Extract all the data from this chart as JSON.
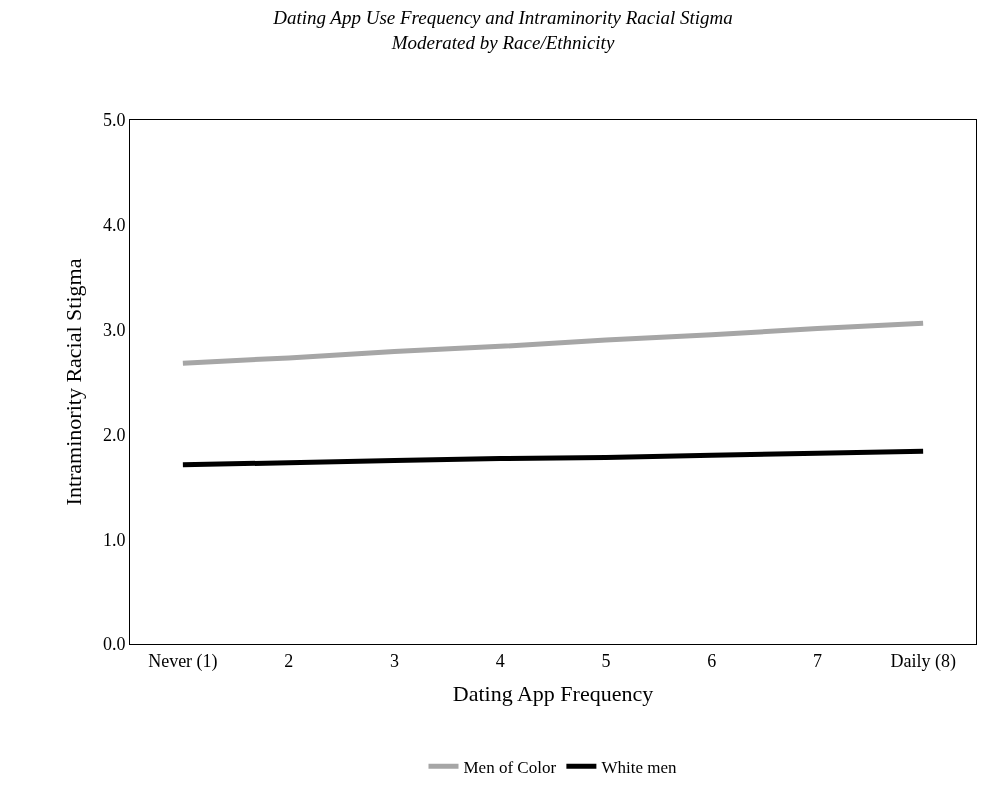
{
  "chart_data": {
    "type": "line",
    "title": "Dating App Use Frequency and Intraminority Racial Stigma\nModerated by Race/Ethnicity",
    "xlabel": "Dating App Frequency",
    "ylabel": "Intraminority Racial Stigma",
    "categories": [
      "Never (1)",
      "2",
      "3",
      "4",
      "5",
      "6",
      "7",
      "Daily (8)"
    ],
    "series": [
      {
        "name": "Men of Color",
        "color": "#a6a6a6",
        "values": [
          2.68,
          2.73,
          2.79,
          2.84,
          2.9,
          2.95,
          3.01,
          3.06
        ]
      },
      {
        "name": "White men",
        "color": "#000000",
        "values": [
          1.71,
          1.73,
          1.75,
          1.77,
          1.78,
          1.8,
          1.82,
          1.84
        ]
      }
    ],
    "ylim": [
      0,
      5
    ],
    "yticks": [
      {
        "value": 0,
        "label": "0.0"
      },
      {
        "value": 1,
        "label": "1.0"
      },
      {
        "value": 2,
        "label": "2.0"
      },
      {
        "value": 3,
        "label": "3.0"
      },
      {
        "value": 4,
        "label": "4.0"
      },
      {
        "value": 5,
        "label": "5.0"
      }
    ],
    "legend": "bottom",
    "marker": "none",
    "line_style": "solid"
  }
}
